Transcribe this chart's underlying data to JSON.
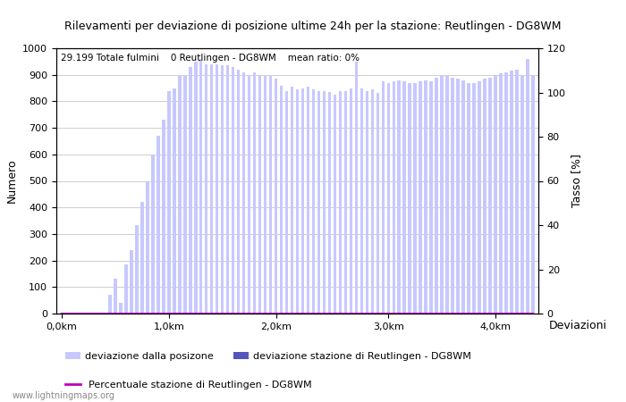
{
  "title": "Rilevamenti per deviazione di posizione ultime 24h per la stazione: Reutlingen - DG8WM",
  "subtitle": "29.199 Totale fulmini    0 Reutlingen - DG8WM    mean ratio: 0%",
  "ylabel_left": "Numero",
  "ylabel_right": "Tasso [%]",
  "legend_right": "Deviazioni",
  "watermark": "www.lightningmaps.org",
  "bar_color_light": "#c8c8ff",
  "bar_color_dark": "#5555bb",
  "line_color": "#bb00bb",
  "background_color": "#ffffff",
  "grid_color": "#bbbbbb",
  "ylim_left": [
    0,
    1000
  ],
  "ylim_right": [
    0,
    120
  ],
  "xtick_labels": [
    "0,0km",
    "1,0km",
    "2,0km",
    "3,0km",
    "4,0km"
  ],
  "bar_values": [
    5,
    1,
    2,
    1,
    3,
    1,
    2,
    4,
    2,
    70,
    130,
    40,
    185,
    240,
    335,
    420,
    500,
    600,
    670,
    730,
    840,
    850,
    900,
    895,
    930,
    950,
    960,
    940,
    940,
    940,
    935,
    935,
    930,
    920,
    910,
    900,
    910,
    900,
    895,
    895,
    885,
    860,
    840,
    855,
    845,
    850,
    855,
    845,
    840,
    840,
    835,
    825,
    840,
    840,
    850,
    950,
    850,
    840,
    845,
    830,
    875,
    870,
    875,
    880,
    875,
    870,
    870,
    875,
    880,
    875,
    890,
    900,
    895,
    890,
    885,
    880,
    870,
    870,
    875,
    885,
    890,
    900,
    905,
    910,
    915,
    920,
    895,
    960,
    895
  ],
  "station_values": [
    0,
    0,
    0,
    0,
    0,
    0,
    0,
    0,
    0,
    0,
    0,
    0,
    0,
    0,
    0,
    0,
    0,
    0,
    0,
    0,
    0,
    0,
    0,
    0,
    0,
    0,
    0,
    0,
    0,
    0,
    0,
    0,
    0,
    0,
    0,
    0,
    0,
    0,
    0,
    0,
    0,
    0,
    0,
    0,
    0,
    0,
    0,
    0,
    0,
    0,
    0,
    0,
    0,
    0,
    0,
    0,
    0,
    0,
    0,
    0,
    0,
    0,
    0,
    0,
    0,
    0,
    0,
    0,
    0,
    0,
    0,
    0,
    0,
    0,
    0,
    0,
    0,
    0,
    0,
    0,
    0,
    0,
    0,
    0,
    0,
    0,
    0,
    0,
    0
  ],
  "percentage_values": [
    0,
    0,
    0,
    0,
    0,
    0,
    0,
    0,
    0,
    0,
    0,
    0,
    0,
    0,
    0,
    0,
    0,
    0,
    0,
    0,
    0,
    0,
    0,
    0,
    0,
    0,
    0,
    0,
    0,
    0,
    0,
    0,
    0,
    0,
    0,
    0,
    0,
    0,
    0,
    0,
    0,
    0,
    0,
    0,
    0,
    0,
    0,
    0,
    0,
    0,
    0,
    0,
    0,
    0,
    0,
    0,
    0,
    0,
    0,
    0,
    0,
    0,
    0,
    0,
    0,
    0,
    0,
    0,
    0,
    0,
    0,
    0,
    0,
    0,
    0,
    0,
    0,
    0,
    0,
    0,
    0,
    0,
    0,
    0,
    0,
    0,
    0,
    0,
    0
  ],
  "n_bars": 89,
  "km_range": 4.4,
  "legend_labels": [
    "deviazione dalla posizone",
    "deviazione stazione di Reutlingen - DG8WM",
    "Percentuale stazione di Reutlingen - DG8WM"
  ]
}
